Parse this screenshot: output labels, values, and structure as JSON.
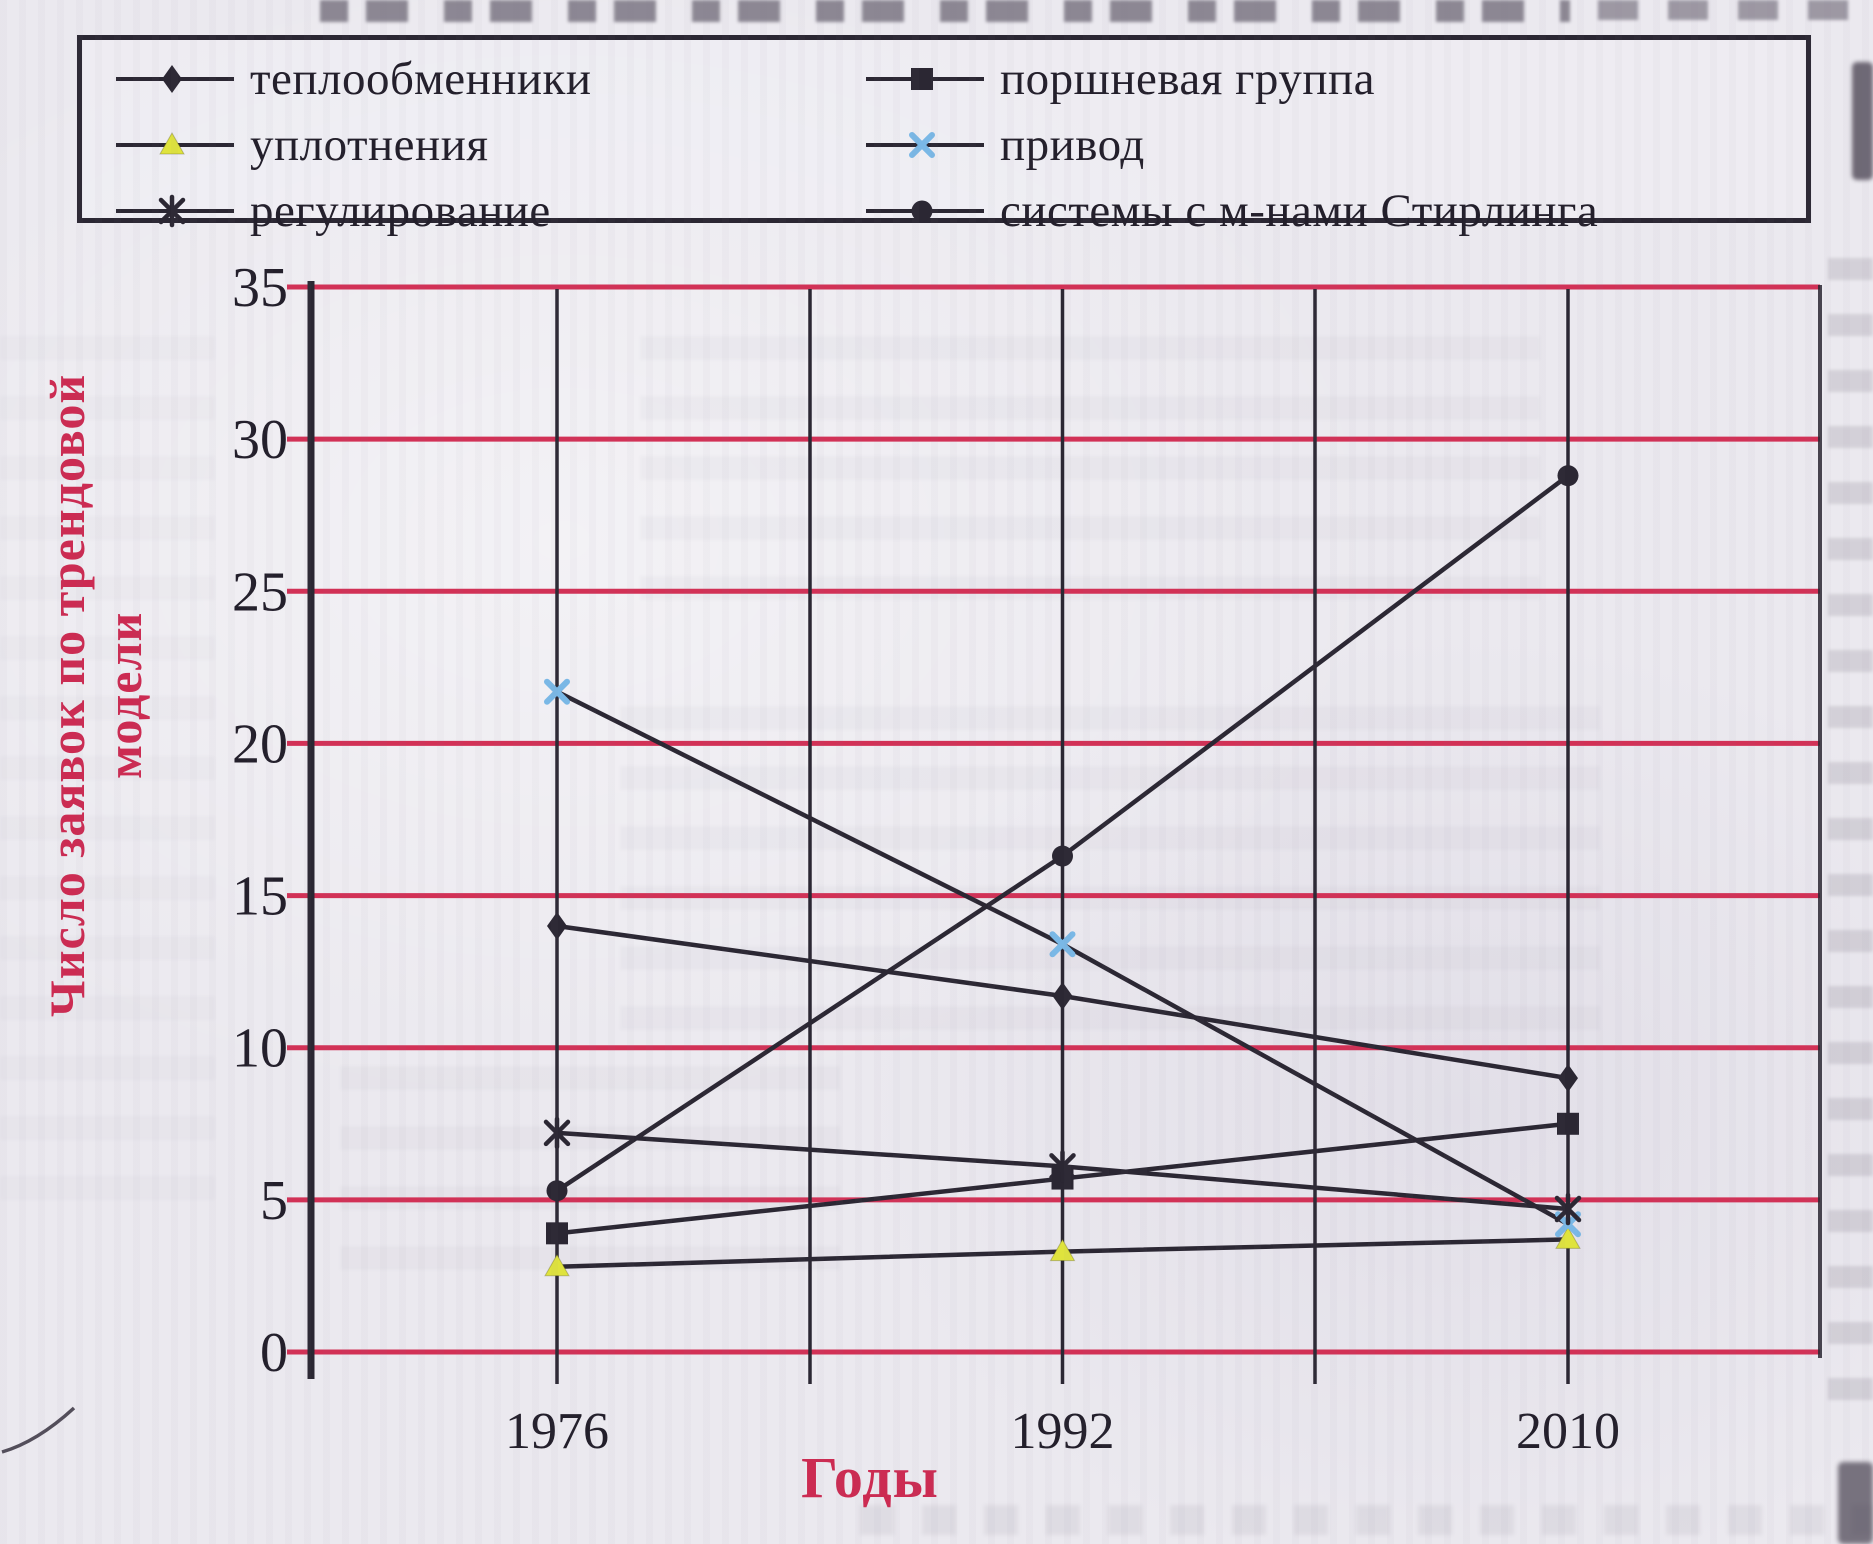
{
  "legend": {
    "columns": [
      {
        "items": [
          {
            "label": "теплообменники",
            "series_index": 0
          },
          {
            "label": "уплотнения",
            "series_index": 2
          },
          {
            "label": "регулирование",
            "series_index": 4
          }
        ]
      },
      {
        "items": [
          {
            "label": "поршневая группа",
            "series_index": 1
          },
          {
            "label": "привод",
            "series_index": 3
          },
          {
            "label": "системы с м-нами Стирлинга",
            "series_index": 5
          }
        ]
      }
    ]
  },
  "chart_data": {
    "type": "line",
    "categories": [
      "1976",
      "1992",
      "2010"
    ],
    "series": [
      {
        "name": "теплообменники",
        "marker": "diamond",
        "marker_color": "#2b2733",
        "values": [
          14.0,
          11.7,
          9.0
        ]
      },
      {
        "name": "поршневая группа",
        "marker": "square",
        "marker_color": "#2b2733",
        "values": [
          3.9,
          5.7,
          7.5
        ]
      },
      {
        "name": "уплотнения",
        "marker": "triangle",
        "marker_color": "#dfe33d",
        "values": [
          2.8,
          3.3,
          3.7
        ]
      },
      {
        "name": "привод",
        "marker": "x",
        "marker_color": "#7ab8e6",
        "values": [
          21.7,
          13.4,
          4.2
        ]
      },
      {
        "name": "регулирование",
        "marker": "asterisk",
        "marker_color": "#2b2733",
        "values": [
          7.2,
          6.1,
          4.7
        ]
      },
      {
        "name": "системы с м-нами Стирлинга",
        "marker": "circle",
        "marker_color": "#2b2733",
        "values": [
          5.3,
          16.3,
          28.8
        ]
      }
    ],
    "xlabel": "Годы",
    "ylabel": "Число заявок по трендовой модели",
    "ylabel_lines": [
      "Число заявок по трендовой",
      "модели"
    ],
    "ylim": [
      0,
      35
    ],
    "yticks": [
      0,
      5,
      10,
      15,
      20,
      25,
      30,
      35
    ],
    "grid": {
      "horizontal": true,
      "vertical": true
    },
    "legend_position": "top"
  },
  "colors": {
    "paper": "#ebe9ef",
    "ink": "#2b2733",
    "grid_red": "#d23156",
    "label_red": "#cc2b52",
    "marker_cyan": "#7ab8e6",
    "marker_yellow": "#dfe33d"
  }
}
